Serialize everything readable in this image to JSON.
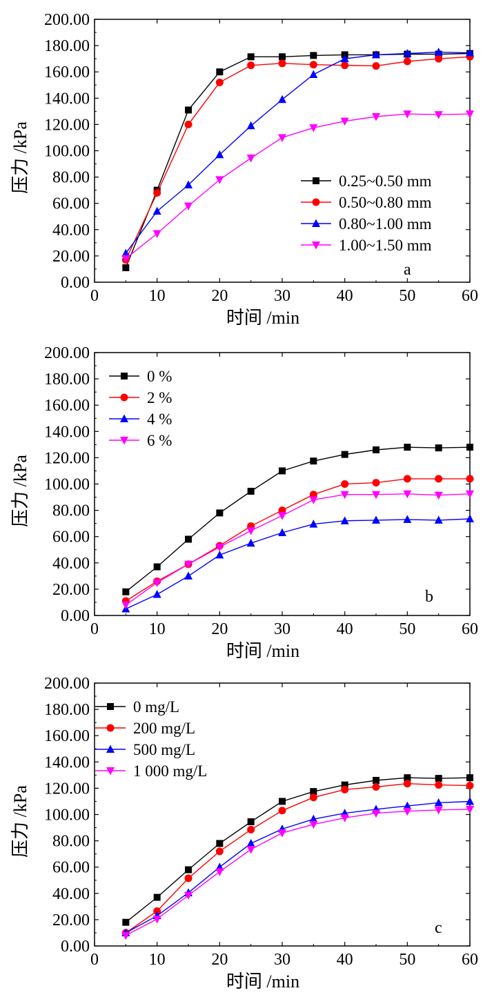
{
  "chart_data": [
    {
      "type": "line",
      "panel_label": "a",
      "xlabel": "时间 /min",
      "ylabel": "压力 /kPa",
      "xlim": [
        0,
        60
      ],
      "ylim": [
        0,
        200
      ],
      "xticks": [
        "0",
        "10",
        "20",
        "30",
        "40",
        "50",
        "60"
      ],
      "yticks": [
        "0.00",
        "20.00",
        "40.00",
        "60.00",
        "80.00",
        "100.00",
        "120.00",
        "140.00",
        "160.00",
        "180.00",
        "200.00"
      ],
      "legend_position": "bottom-right",
      "x": [
        5,
        10,
        15,
        20,
        25,
        30,
        35,
        40,
        45,
        50,
        55,
        60
      ],
      "series": [
        {
          "name": "0.25~0.50 mm",
          "color": "#000000",
          "marker": "square",
          "values": [
            11,
            70,
            131,
            160,
            171.5,
            171.5,
            172.5,
            173,
            173,
            173.5,
            173.5,
            174
          ]
        },
        {
          "name": "0.50~0.80 mm",
          "color": "#ff0000",
          "marker": "circle",
          "values": [
            17,
            68,
            120,
            152,
            165,
            166.5,
            165.5,
            165,
            164.5,
            168,
            170,
            171.5
          ]
        },
        {
          "name": "0.80~1.00 mm",
          "color": "#0000ff",
          "marker": "triangle-up",
          "values": [
            22,
            54,
            74,
            97,
            119,
            139,
            158,
            170,
            173,
            174,
            175,
            174.5
          ]
        },
        {
          "name": "1.00~1.50 mm",
          "color": "#ff00ff",
          "marker": "triangle-down",
          "values": [
            18,
            37,
            58,
            78,
            94.5,
            110,
            117.5,
            122.5,
            126,
            128,
            127.5,
            128
          ]
        }
      ]
    },
    {
      "type": "line",
      "panel_label": "b",
      "xlabel": "时间 /min",
      "ylabel": "压力 /kPa",
      "xlim": [
        0,
        60
      ],
      "ylim": [
        0,
        200
      ],
      "xticks": [
        "0",
        "10",
        "20",
        "30",
        "40",
        "50",
        "60"
      ],
      "yticks": [
        "0.00",
        "20.00",
        "40.00",
        "60.00",
        "80.00",
        "100.00",
        "120.00",
        "140.00",
        "160.00",
        "180.00",
        "200.00"
      ],
      "legend_position": "top-left",
      "x": [
        5,
        10,
        15,
        20,
        25,
        30,
        35,
        40,
        45,
        50,
        55,
        60
      ],
      "series": [
        {
          "name": "0 %",
          "color": "#000000",
          "marker": "square",
          "values": [
            18,
            37,
            58,
            78,
            94.5,
            110,
            117.5,
            122.5,
            126,
            128,
            127.5,
            128
          ]
        },
        {
          "name": "2 %",
          "color": "#ff0000",
          "marker": "circle",
          "values": [
            11,
            26,
            39,
            53,
            68,
            80,
            92,
            100,
            101,
            104,
            104,
            104
          ]
        },
        {
          "name": "4 %",
          "color": "#0000ff",
          "marker": "triangle-up",
          "values": [
            5,
            16,
            30,
            46,
            55,
            63,
            69.5,
            72,
            72.5,
            73,
            72.5,
            73.5
          ]
        },
        {
          "name": "6 %",
          "color": "#ff00ff",
          "marker": "triangle-down",
          "values": [
            8,
            25,
            39,
            52,
            64.5,
            76,
            88,
            92,
            92,
            92.5,
            91.5,
            92.5
          ]
        }
      ]
    },
    {
      "type": "line",
      "panel_label": "c",
      "xlabel": "时间 /min",
      "ylabel": "压力 /kPa",
      "xlim": [
        0,
        60
      ],
      "ylim": [
        0,
        200
      ],
      "xticks": [
        "0",
        "10",
        "20",
        "30",
        "40",
        "50",
        "60"
      ],
      "yticks": [
        "0.00",
        "20.00",
        "40.00",
        "60.00",
        "80.00",
        "100.00",
        "120.00",
        "140.00",
        "160.00",
        "180.00",
        "200.00"
      ],
      "legend_position": "top-left",
      "x": [
        5,
        10,
        15,
        20,
        25,
        30,
        35,
        40,
        45,
        50,
        55,
        60
      ],
      "series": [
        {
          "name": "0 mg/L",
          "color": "#000000",
          "marker": "square",
          "values": [
            18,
            37,
            58,
            78,
            94.5,
            110,
            117.5,
            122.5,
            126,
            128,
            127.5,
            128
          ]
        },
        {
          "name": "200 mg/L",
          "color": "#ff0000",
          "marker": "circle",
          "values": [
            10,
            26.5,
            51.5,
            72,
            88.5,
            103,
            113,
            119,
            121,
            123.5,
            122.5,
            122
          ]
        },
        {
          "name": "500 mg/L",
          "color": "#0000ff",
          "marker": "triangle-up",
          "values": [
            10,
            23,
            40.5,
            60,
            78,
            89,
            96.5,
            101,
            104,
            106.5,
            109,
            110
          ]
        },
        {
          "name": "1 000 mg/L",
          "color": "#ff00ff",
          "marker": "triangle-down",
          "values": [
            8,
            20.5,
            38.5,
            56.5,
            73.5,
            86,
            92.5,
            97.5,
            101,
            102.5,
            103.5,
            104
          ]
        }
      ]
    }
  ]
}
